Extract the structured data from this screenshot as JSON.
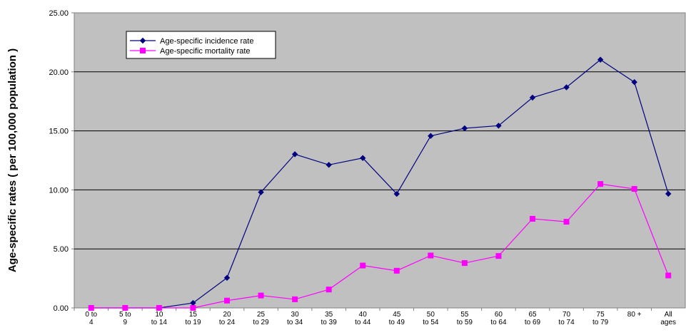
{
  "chart_data": {
    "type": "line",
    "title": "",
    "xlabel": "",
    "ylabel": "Age-specific rates ( per 100,000 population )",
    "ylim": [
      0,
      25
    ],
    "yticks": [
      "0.00",
      "5.00",
      "10.00",
      "15.00",
      "20.00",
      "25.00"
    ],
    "grid": true,
    "legend_position": "top-left",
    "categories": [
      [
        "0 to",
        "4"
      ],
      [
        "5 to",
        "9"
      ],
      [
        "10",
        "to 14"
      ],
      [
        "15",
        "to 19"
      ],
      [
        "20",
        "to 24"
      ],
      [
        "25",
        "to 29"
      ],
      [
        "30",
        "to 34"
      ],
      [
        "35",
        "to 39"
      ],
      [
        "40",
        "to 44"
      ],
      [
        "45",
        "to 49"
      ],
      [
        "50",
        "to 54"
      ],
      [
        "55",
        "to 59"
      ],
      [
        "60",
        "to 64"
      ],
      [
        "65",
        "to 69"
      ],
      [
        "70",
        "to 74"
      ],
      [
        "75",
        "to 79"
      ],
      [
        "80 +",
        ""
      ],
      [
        "All",
        "ages"
      ]
    ],
    "series": [
      {
        "name": "Age-specific incidence rate",
        "color": "#000080",
        "marker": "diamond",
        "values": [
          0.0,
          0.0,
          0.0,
          0.42,
          2.55,
          9.8,
          13.02,
          12.12,
          12.7,
          9.66,
          14.57,
          15.22,
          15.44,
          17.82,
          18.69,
          21.03,
          19.13,
          9.67
        ]
      },
      {
        "name": "Age-specific mortality rate",
        "color": "#ff00ff",
        "marker": "square",
        "values": [
          0.0,
          0.0,
          0.0,
          0.0,
          0.62,
          1.05,
          0.73,
          1.56,
          3.59,
          3.15,
          4.44,
          3.8,
          4.4,
          7.55,
          7.3,
          10.5,
          10.08,
          2.75
        ]
      }
    ]
  }
}
